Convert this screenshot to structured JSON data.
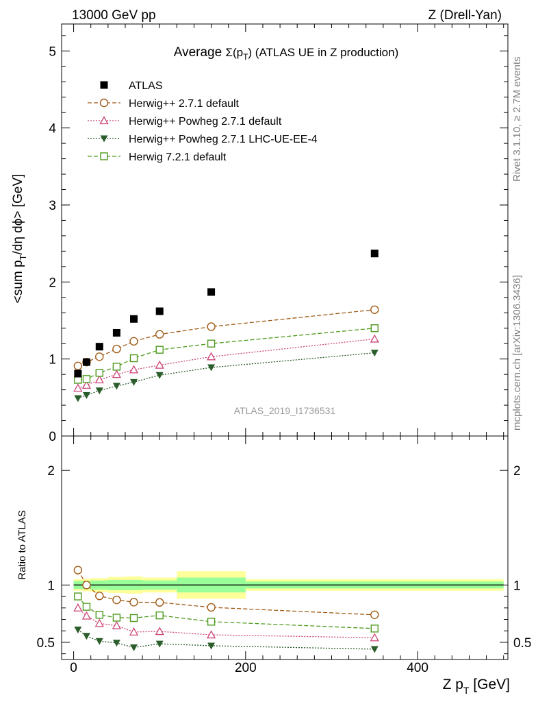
{
  "header": {
    "left": "13000 GeV pp",
    "right": "Z (Drell-Yan)"
  },
  "side_labels": {
    "rivet": "Rivet 3.1.10, ≥ 2.7M events",
    "mcplots": "mcplots.cern.ch [arXiv:1306.3436]"
  },
  "watermark": "ATLAS_2019_I1736531",
  "chart_data": [
    {
      "type": "scatter",
      "title_prefix": "Average ",
      "title_sigma": "Σ(p",
      "title_sigma_sub": "T",
      "title_suffix": ") (ATLAS UE in Z production)",
      "ylabel": "<sum p_T/dη dϕ> [GeV]",
      "xlim": [
        -14,
        505
      ],
      "ylim": [
        0,
        5.35
      ],
      "y_ticks": [
        "0",
        "1",
        "2",
        "3",
        "4",
        "5"
      ],
      "x": [
        5,
        15,
        30,
        50,
        70,
        100,
        160,
        350
      ],
      "series": [
        {
          "name": "ATLAS",
          "color": "#000000",
          "marker": "square-filled",
          "line": "none",
          "values": [
            0.81,
            0.96,
            1.16,
            1.34,
            1.52,
            1.62,
            1.87,
            2.37
          ]
        },
        {
          "name": "Herwig++ 2.7.1 default",
          "color": "#a05a14",
          "marker": "circle-open",
          "line": "dashed",
          "values": [
            0.91,
            0.96,
            1.03,
            1.13,
            1.23,
            1.32,
            1.42,
            1.64
          ]
        },
        {
          "name": "Herwig++ Powheg 2.7.1 default",
          "color": "#cc4477",
          "marker": "triangle-open",
          "line": "dotted",
          "values": [
            0.62,
            0.66,
            0.73,
            0.8,
            0.86,
            0.92,
            1.03,
            1.26
          ]
        },
        {
          "name": "Herwig++ Powheg 2.7.1 LHC-UE-EE-4",
          "color": "#2b5d2b",
          "marker": "triangle-down-filled",
          "line": "dotted",
          "values": [
            0.49,
            0.53,
            0.59,
            0.65,
            0.7,
            0.79,
            0.89,
            1.08
          ]
        },
        {
          "name": "Herwig 7.2.1 default",
          "color": "#4e9a1e",
          "marker": "square-open",
          "line": "dashed",
          "values": [
            0.73,
            0.74,
            0.82,
            0.9,
            1.01,
            1.12,
            1.2,
            1.4
          ]
        }
      ]
    },
    {
      "type": "scatter",
      "xlabel": "Z p_T [GeV]",
      "ylabel": "Ratio to ATLAS",
      "xlim": [
        -14,
        505
      ],
      "ylim": [
        0.35,
        2.3
      ],
      "x_ticks": [
        "0",
        "200",
        "400"
      ],
      "y_ticks": [
        "0.5",
        "1",
        "2"
      ],
      "bands": [
        {
          "x0": 0,
          "x1": 10,
          "yellow": 0.05,
          "green": 0.035
        },
        {
          "x0": 10,
          "x1": 20,
          "yellow": 0.055,
          "green": 0.035
        },
        {
          "x0": 20,
          "x1": 40,
          "yellow": 0.06,
          "green": 0.04
        },
        {
          "x0": 40,
          "x1": 60,
          "yellow": 0.07,
          "green": 0.045
        },
        {
          "x0": 60,
          "x1": 80,
          "yellow": 0.075,
          "green": 0.045
        },
        {
          "x0": 80,
          "x1": 120,
          "yellow": 0.065,
          "green": 0.04
        },
        {
          "x0": 120,
          "x1": 200,
          "yellow": 0.12,
          "green": 0.065
        },
        {
          "x0": 200,
          "x1": 500,
          "yellow": 0.05,
          "green": 0.03
        }
      ],
      "series": [
        {
          "name": "Herwig++ 2.7.1 default",
          "color": "#a05a14",
          "marker": "circle-open",
          "line": "dashed",
          "values": [
            1.13,
            1.0,
            0.905,
            0.87,
            0.85,
            0.848,
            0.805,
            0.74
          ]
        },
        {
          "name": "Herwig++ Powheg 2.7.1 default",
          "color": "#cc4477",
          "marker": "triangle-open",
          "line": "dotted",
          "values": [
            0.8,
            0.73,
            0.665,
            0.645,
            0.59,
            0.595,
            0.565,
            0.54
          ]
        },
        {
          "name": "Herwig++ Powheg 2.7.1 LHC-UE-EE-4",
          "color": "#2b5d2b",
          "marker": "triangle-down-filled",
          "line": "dotted",
          "values": [
            0.61,
            0.555,
            0.51,
            0.495,
            0.455,
            0.487,
            0.47,
            0.44
          ]
        },
        {
          "name": "Herwig 7.2.1 default",
          "color": "#4e9a1e",
          "marker": "square-open",
          "line": "dashed",
          "values": [
            0.9,
            0.81,
            0.74,
            0.715,
            0.712,
            0.735,
            0.68,
            0.62
          ]
        }
      ]
    }
  ]
}
